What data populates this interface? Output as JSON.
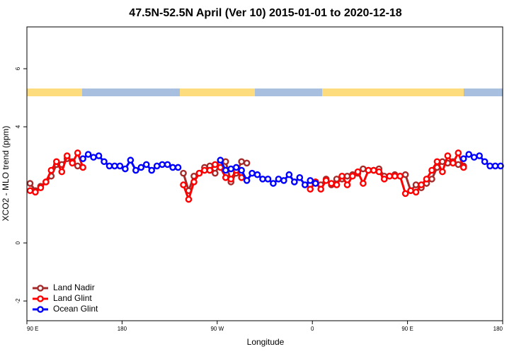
{
  "chart_data": {
    "type": "line",
    "title": "47.5N-52.5N April (Ver 10)   2015-01-01 to 2020-12-18",
    "x_label": "Longitude",
    "y_label": "XCO2 - MLO trend (ppm)",
    "xlim": [
      90,
      540
    ],
    "xticks": [
      {
        "value": 90,
        "label": "90 E"
      },
      180,
      {
        "value": 270,
        "label": "90 W"
      },
      {
        "value": 360,
        "label": "0"
      },
      {
        "value": 450,
        "label": "90 E"
      },
      {
        "value": 540,
        "label": "180"
      }
    ],
    "ylim": [
      -2.68,
      7.44
    ],
    "yticks": [
      -2,
      0,
      4,
      6
    ],
    "legend": "bottom-left",
    "series": [
      {
        "name": "Land Nadir",
        "color": "#a52a2a",
        "x": [
          93,
          98,
          103,
          108,
          113,
          118,
          123,
          128,
          133,
          138,
          null,
          238,
          243,
          248,
          253,
          258,
          263,
          268,
          273,
          278,
          283,
          288,
          293,
          298,
          null,
          358,
          363,
          368,
          373,
          378,
          383,
          388,
          393,
          398,
          403,
          408,
          413,
          418,
          423,
          428,
          433,
          438,
          443,
          448,
          453,
          458,
          463,
          468,
          473,
          478,
          483,
          488,
          493,
          498,
          503
        ],
        "values": [
          2.05,
          1.8,
          1.95,
          2.1,
          2.3,
          2.7,
          2.7,
          2.9,
          2.8,
          2.65,
          null,
          2.4,
          1.8,
          2.3,
          2.4,
          2.6,
          2.65,
          2.4,
          2.75,
          2.8,
          2.1,
          2.4,
          2.8,
          2.75,
          null,
          2.0,
          2.1,
          2.0,
          2.2,
          2.0,
          2.2,
          2.2,
          2.3,
          2.35,
          2.4,
          2.55,
          2.5,
          2.5,
          2.55,
          2.3,
          2.3,
          2.35,
          2.3,
          2.35,
          1.8,
          2.0,
          1.9,
          2.05,
          2.2,
          2.6,
          2.8,
          2.75,
          2.8,
          2.7,
          2.65
        ]
      },
      {
        "name": "Land Glint",
        "color": "#ff0000",
        "x": [
          93,
          98,
          103,
          108,
          113,
          118,
          123,
          128,
          133,
          138,
          143,
          null,
          238,
          243,
          248,
          253,
          258,
          263,
          268,
          273,
          278,
          283,
          288,
          293,
          null,
          358,
          363,
          368,
          373,
          378,
          383,
          388,
          393,
          398,
          403,
          408,
          413,
          418,
          423,
          428,
          433,
          438,
          443,
          448,
          453,
          458,
          463,
          468,
          473,
          478,
          483,
          488,
          493,
          498,
          503
        ],
        "values": [
          1.8,
          1.75,
          1.9,
          2.1,
          2.5,
          2.8,
          2.45,
          3.0,
          2.75,
          3.1,
          2.6,
          null,
          2.0,
          1.5,
          2.1,
          2.4,
          2.5,
          2.5,
          2.7,
          2.6,
          2.25,
          2.2,
          2.5,
          2.25,
          null,
          1.85,
          2.1,
          1.85,
          2.15,
          2.05,
          2.0,
          2.3,
          2.0,
          2.3,
          2.45,
          2.05,
          2.5,
          2.5,
          2.45,
          2.2,
          2.3,
          2.3,
          2.3,
          1.7,
          1.8,
          1.75,
          2.0,
          2.2,
          2.5,
          2.8,
          2.45,
          3.0,
          2.75,
          3.1,
          2.6
        ]
      },
      {
        "name": "Ocean Glint",
        "color": "#0000ff",
        "x": [
          143,
          148,
          153,
          158,
          163,
          168,
          173,
          178,
          183,
          188,
          193,
          198,
          203,
          208,
          213,
          218,
          223,
          228,
          233,
          null,
          273,
          278,
          283,
          288,
          293,
          298,
          303,
          308,
          313,
          318,
          323,
          328,
          333,
          338,
          343,
          348,
          353,
          358,
          363,
          null,
          503,
          508,
          513,
          518,
          523,
          528,
          533,
          538
        ],
        "values": [
          2.9,
          3.05,
          2.95,
          3.0,
          2.8,
          2.65,
          2.65,
          2.65,
          2.55,
          2.85,
          2.5,
          2.6,
          2.7,
          2.5,
          2.65,
          2.7,
          2.7,
          2.6,
          2.6,
          null,
          2.85,
          2.5,
          2.55,
          2.6,
          2.5,
          2.15,
          2.4,
          2.35,
          2.2,
          2.2,
          2.05,
          2.2,
          2.15,
          2.35,
          2.1,
          2.25,
          2.0,
          2.15,
          2.05,
          null,
          2.9,
          3.05,
          2.95,
          3.0,
          2.8,
          2.65,
          2.65,
          2.65
        ]
      }
    ]
  }
}
